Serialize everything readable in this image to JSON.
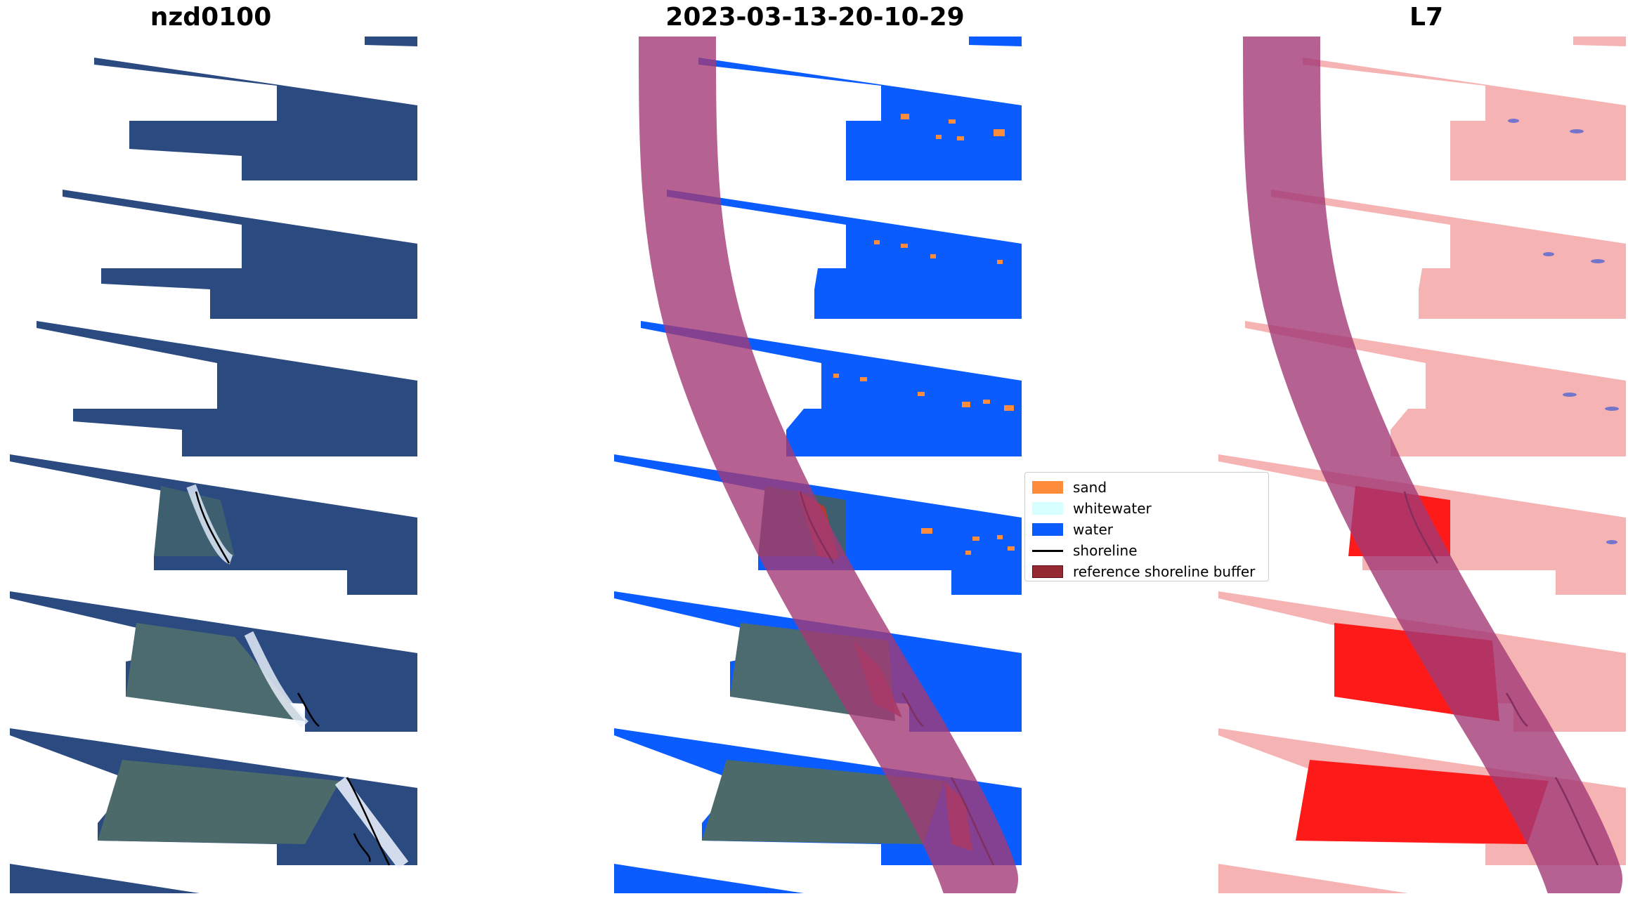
{
  "titles": {
    "left": "nzd0100",
    "middle": "2023-03-13-20-10-29",
    "right": "L7"
  },
  "legend": {
    "items": [
      {
        "label": "sand",
        "color": "#ff8c3a"
      },
      {
        "label": "whitewater",
        "color": "#d6ffff"
      },
      {
        "label": "water",
        "color": "#0b5cff"
      },
      {
        "label": "shoreline",
        "color": "#000000"
      },
      {
        "label": "reference shoreline buffer",
        "color": "#962a33"
      }
    ]
  },
  "colors": {
    "water_rgb": "#2a4a80",
    "land_rgb": "#4a6a7a",
    "buffer": "#a33a75",
    "mndwi_water": "#f5b3b3",
    "mndwi_land": "#ff1a1a"
  }
}
